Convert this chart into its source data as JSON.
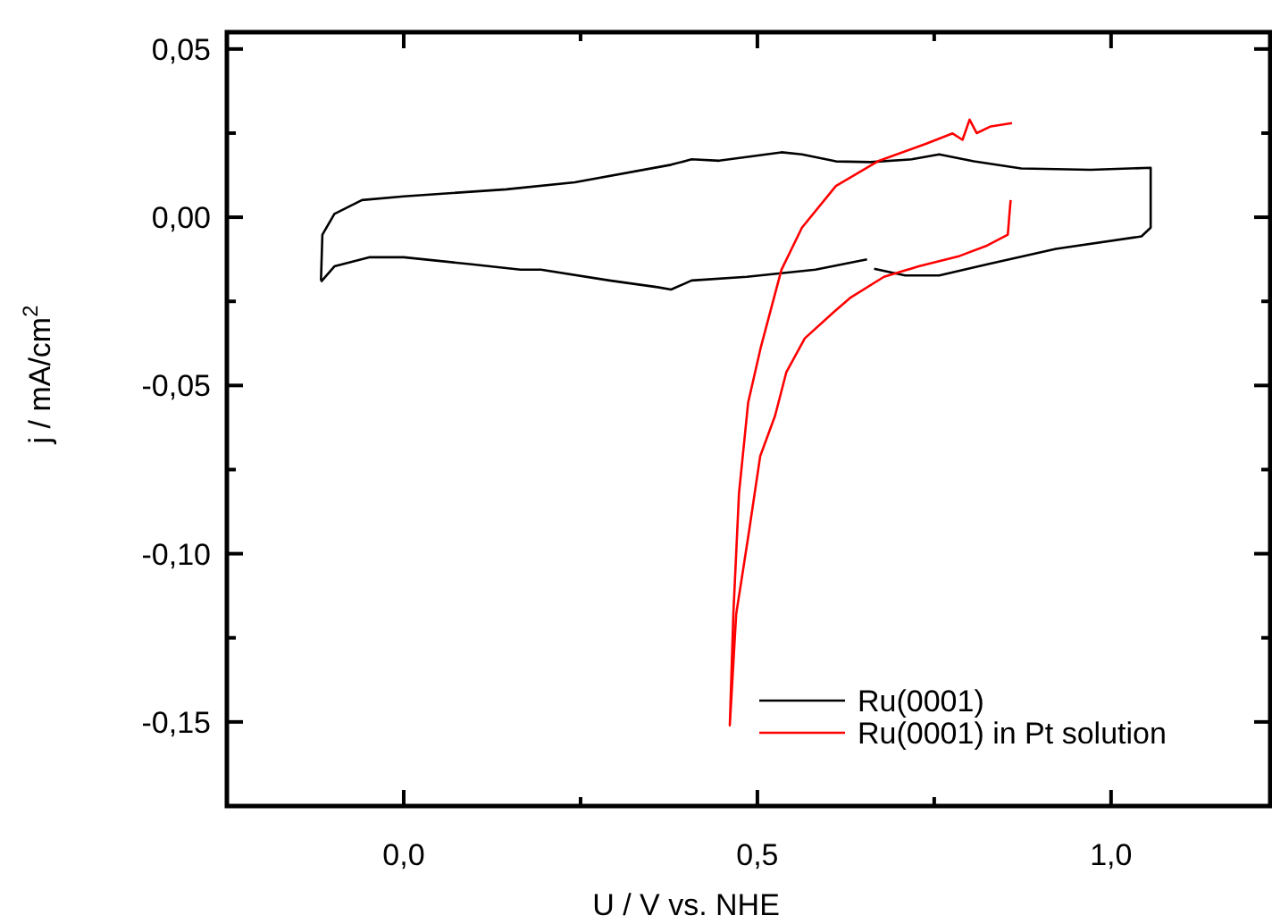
{
  "chart_data": {
    "type": "line",
    "xlabel": "U / V vs. NHE",
    "ylabel": "j / mA/cm$^{2}$",
    "xlim": [
      -0.25,
      1.225
    ],
    "ylim": [
      -0.175,
      0.055
    ],
    "xticks": [
      {
        "value": 0,
        "label": "0,0"
      },
      {
        "value": 0.25,
        "label": null
      },
      {
        "value": 0.5,
        "label": "0,5"
      },
      {
        "value": 0.75,
        "label": null
      },
      {
        "value": 1,
        "label": "1,0"
      }
    ],
    "yticks": [
      {
        "value": 0.05,
        "label": "0,05"
      },
      {
        "value": 0.025,
        "label": null
      },
      {
        "value": 0,
        "label": "0,00"
      },
      {
        "value": -0.025,
        "label": null
      },
      {
        "value": -0.05,
        "label": "-0,05"
      },
      {
        "value": -0.075,
        "label": null
      },
      {
        "value": -0.1,
        "label": "-0,10"
      },
      {
        "value": -0.125,
        "label": null
      },
      {
        "value": -0.15,
        "label": "-0,15"
      }
    ],
    "legend": "bottom right",
    "grid": false,
    "marker": "none",
    "line_style": "solid",
    "series": [
      {
        "name": "Ru(0001)",
        "color": "#000000",
        "x": [
          -0.117,
          -0.115,
          -0.098,
          -0.059,
          0.0,
          0.145,
          0.242,
          0.378,
          0.407,
          0.446,
          0.534,
          0.563,
          0.611,
          0.66,
          0.718,
          0.757,
          0.806,
          0.873,
          0.971,
          1.056,
          1.056,
          1.043,
          0.922,
          0.825,
          0.757,
          0.709,
          0.665,
          0.66,
          0.655,
          0.582,
          0.485,
          0.407,
          0.378,
          0.359,
          0.291,
          0.194,
          0.165,
          0.096,
          0.0,
          -0.049,
          -0.098,
          -0.117
        ],
        "values": [
          -0.0188,
          -0.0052,
          0.001,
          0.0051,
          0.0062,
          0.0083,
          0.0104,
          0.0156,
          0.0172,
          0.0168,
          0.0193,
          0.0187,
          0.0166,
          0.0164,
          0.0172,
          0.0187,
          0.0166,
          0.0145,
          0.0141,
          0.0147,
          -0.0031,
          -0.0057,
          -0.0094,
          -0.014,
          -0.0173,
          -0.0173,
          -0.0153,
          null,
          -0.0125,
          -0.0156,
          -0.0177,
          -0.0188,
          -0.0215,
          -0.0208,
          -0.0188,
          -0.0156,
          -0.0156,
          -0.014,
          -0.0119,
          -0.0119,
          -0.0146,
          -0.0192
        ]
      },
      {
        "name": "Ru(0001) in Pt solution",
        "color": "#ff0000",
        "x": [
          0.86,
          0.83,
          0.81,
          0.8,
          0.79,
          0.776,
          0.738,
          0.67,
          0.611,
          0.563,
          0.534,
          0.505,
          0.487,
          0.474,
          0.466,
          0.461,
          0.47,
          0.487,
          0.504,
          0.525,
          0.541,
          0.567,
          0.609,
          0.631,
          0.679,
          0.728,
          0.786,
          0.825,
          0.854,
          0.858
        ],
        "values": [
          0.028,
          0.027,
          0.025,
          0.029,
          0.023,
          0.0249,
          0.0218,
          0.0166,
          0.0093,
          -0.0031,
          -0.0156,
          -0.0385,
          -0.055,
          -0.082,
          -0.118,
          -0.151,
          -0.118,
          -0.095,
          -0.071,
          -0.059,
          -0.046,
          -0.036,
          -0.028,
          -0.024,
          -0.0177,
          -0.0146,
          -0.0115,
          -0.0084,
          -0.0052,
          0.0051
        ]
      }
    ]
  }
}
